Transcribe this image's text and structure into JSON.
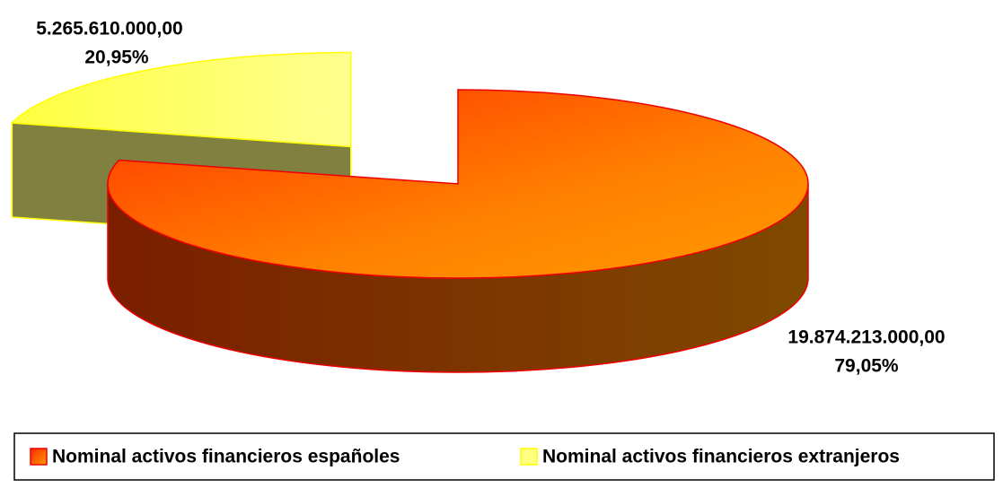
{
  "chart_data": {
    "type": "pie3d",
    "categories": [
      "Nominal activos financieros españoles",
      "Nominal activos financieros extranjeros"
    ],
    "values": [
      19874213000,
      5265610000
    ],
    "value_labels": [
      "19.874.213.000,00",
      "5.265.610.000,00"
    ],
    "percent_labels": [
      "79,05%",
      "20,95%"
    ],
    "colors": [
      "#ff6a00",
      "#ffff80"
    ],
    "legend": "bottom"
  }
}
